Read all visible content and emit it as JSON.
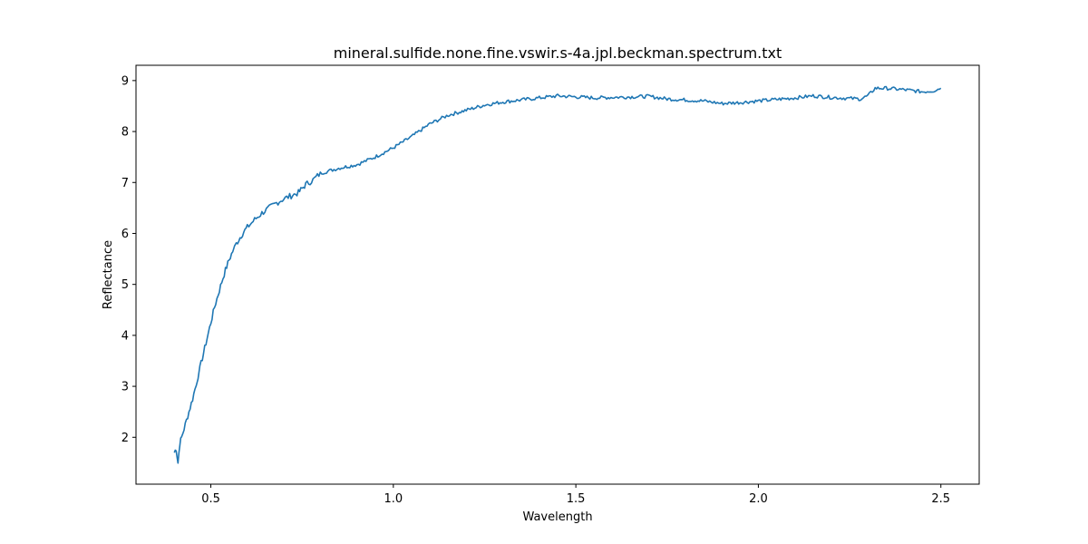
{
  "chart_data": {
    "type": "line",
    "title": "mineral.sulfide.none.fine.vswir.s-4a.jpl.beckman.spectrum.txt",
    "xlabel": "Wavelength",
    "ylabel": "Reflectance",
    "xlim": [
      0.295,
      2.605
    ],
    "ylim": [
      1.08,
      9.3
    ],
    "xticks": [
      0.5,
      1.0,
      1.5,
      2.0,
      2.5
    ],
    "xtick_labels": [
      "0.5",
      "1.0",
      "1.5",
      "2.0",
      "2.5"
    ],
    "yticks": [
      2,
      3,
      4,
      5,
      6,
      7,
      8,
      9
    ],
    "ytick_labels": [
      "2",
      "3",
      "4",
      "5",
      "6",
      "7",
      "8",
      "9"
    ],
    "grid": false,
    "line_color": "#1f77b4",
    "series": [
      {
        "x": [
          0.4,
          0.405,
          0.41,
          0.415,
          0.42,
          0.43,
          0.44,
          0.45,
          0.46,
          0.47,
          0.48,
          0.49,
          0.5,
          0.51,
          0.52,
          0.53,
          0.54,
          0.55,
          0.56,
          0.57,
          0.58,
          0.59,
          0.6,
          0.62,
          0.64,
          0.66,
          0.68,
          0.7,
          0.72,
          0.74,
          0.75,
          0.76,
          0.78,
          0.8,
          0.85,
          0.9,
          0.95,
          1.0,
          1.05,
          1.1,
          1.15,
          1.2,
          1.25,
          1.3,
          1.35,
          1.4,
          1.45,
          1.5,
          1.55,
          1.6,
          1.65,
          1.7,
          1.75,
          1.8,
          1.85,
          1.9,
          1.95,
          2.0,
          2.05,
          2.1,
          2.15,
          2.2,
          2.25,
          2.28,
          2.3,
          2.32,
          2.35,
          2.4,
          2.45,
          2.48,
          2.5
        ],
        "y": [
          1.7,
          1.78,
          1.5,
          1.88,
          2.0,
          2.25,
          2.5,
          2.75,
          3.05,
          3.35,
          3.65,
          3.95,
          4.25,
          4.55,
          4.8,
          5.05,
          5.28,
          5.48,
          5.65,
          5.8,
          5.92,
          6.03,
          6.12,
          6.27,
          6.4,
          6.5,
          6.6,
          6.68,
          6.74,
          6.8,
          6.88,
          6.96,
          7.05,
          7.18,
          7.28,
          7.35,
          7.5,
          7.68,
          7.9,
          8.15,
          8.32,
          8.42,
          8.52,
          8.58,
          8.62,
          8.66,
          8.7,
          8.68,
          8.66,
          8.67,
          8.68,
          8.69,
          8.64,
          8.62,
          8.6,
          8.55,
          8.57,
          8.6,
          8.63,
          8.66,
          8.7,
          8.67,
          8.65,
          8.64,
          8.7,
          8.85,
          8.85,
          8.82,
          8.78,
          8.8,
          8.85
        ]
      }
    ]
  }
}
